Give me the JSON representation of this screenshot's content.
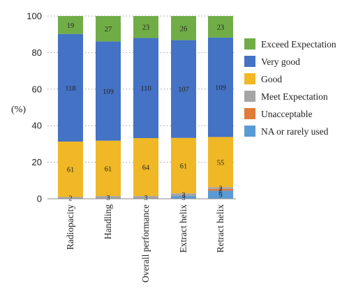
{
  "chart_data": {
    "type": "bar",
    "stacked": true,
    "ylabel": "(%)",
    "ylim": [
      0,
      100
    ],
    "yticks": [
      "0",
      "20",
      "40",
      "60",
      "80",
      "100"
    ],
    "grid": true,
    "legend_position": "right",
    "categories": [
      "Radiopacity",
      "Handling",
      "Overall performance",
      "Extract helix",
      "Retract helix"
    ],
    "series": [
      {
        "name": "NA or rarely used",
        "color": "#5b9bd5",
        "values": [
          0,
          0,
          0,
          1.5,
          4.4
        ],
        "labels": [
          "",
          "",
          "",
          "3",
          "9"
        ]
      },
      {
        "name": "Unacceptable",
        "color": "#e07b39",
        "values": [
          0,
          0,
          0,
          0,
          1.0
        ],
        "labels": [
          "",
          "",
          "",
          "",
          "2"
        ]
      },
      {
        "name": "Meet Expectation",
        "color": "#a5a5a5",
        "values": [
          1.0,
          1.5,
          1.5,
          1.5,
          1.0
        ],
        "labels": [
          "2",
          "3",
          "3",
          "3",
          "2"
        ]
      },
      {
        "name": "Good",
        "color": "#f0b826",
        "values": [
          30.3,
          30.3,
          31.7,
          30.3,
          27.4
        ],
        "labels": [
          "61",
          "61",
          "64",
          "61",
          "55"
        ]
      },
      {
        "name": "Very good",
        "color": "#4472c4",
        "values": [
          58.9,
          54.3,
          54.8,
          53.5,
          54.4
        ],
        "labels": [
          "118",
          "109",
          "110",
          "107",
          "109"
        ]
      },
      {
        "name": "Exceed Expectation",
        "color": "#70ad47",
        "values": [
          9.8,
          13.9,
          12.0,
          13.2,
          11.8
        ],
        "labels": [
          "19",
          "27",
          "23",
          "26",
          "23"
        ]
      }
    ],
    "legend_order": [
      "Exceed Expectation",
      "Very good",
      "Good",
      "Meet Expectation",
      "Unacceptable",
      "NA or rarely used"
    ]
  }
}
